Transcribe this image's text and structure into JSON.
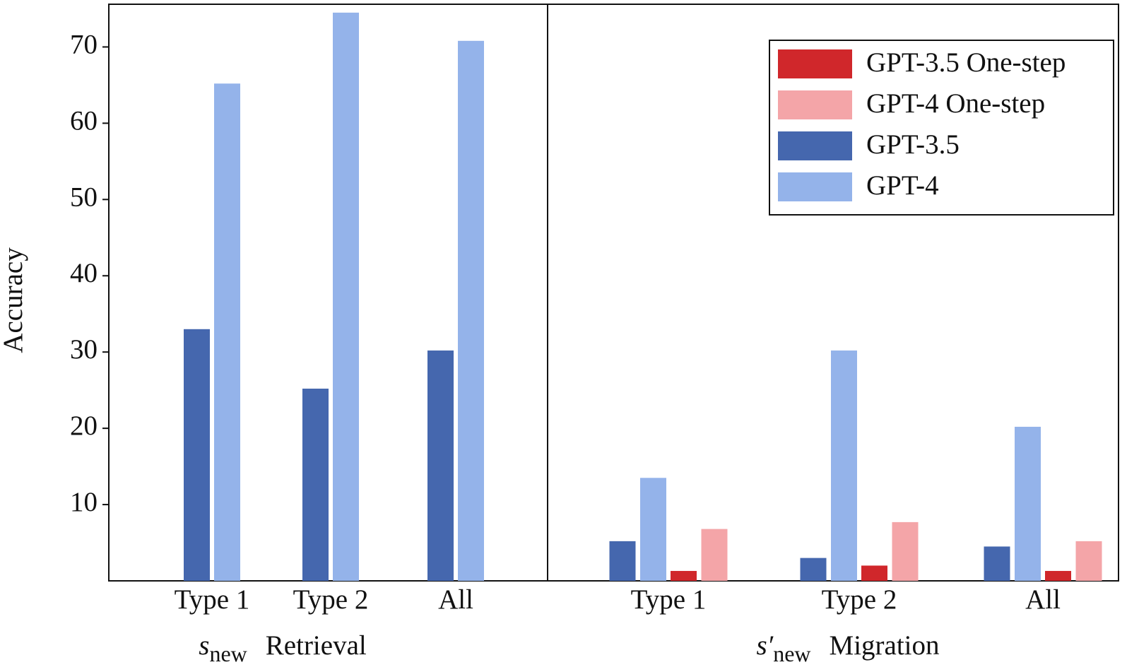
{
  "chart_data": [
    {
      "type": "bar",
      "ylabel": "Accuracy",
      "xlabel_symbol": "s",
      "xlabel_subscript": "new",
      "xlabel": "Retrieval",
      "categories": [
        "Type 1",
        "Type 2",
        "All"
      ],
      "ylim": [
        0,
        75.6
      ],
      "yticks": [
        10,
        20,
        30,
        40,
        50,
        60,
        70
      ],
      "series": [
        {
          "name": "GPT-3.5",
          "color": "#4567ae",
          "values": [
            33,
            25.2,
            30.2
          ]
        },
        {
          "name": "GPT-4",
          "color": "#94b3ea",
          "values": [
            65.2,
            74.5,
            70.8
          ]
        }
      ]
    },
    {
      "type": "bar",
      "xlabel_symbol": "s′",
      "xlabel_subscript": "new",
      "xlabel": "Migration",
      "categories": [
        "Type 1",
        "Type 2",
        "All"
      ],
      "ylim": [
        0,
        75.6
      ],
      "legend": "upper right",
      "series": [
        {
          "name": "GPT-3.5",
          "color": "#4567ae",
          "values": [
            5.2,
            3,
            4.5
          ]
        },
        {
          "name": "GPT-4",
          "color": "#94b3ea",
          "values": [
            13.5,
            30.2,
            20.2
          ]
        },
        {
          "name": "GPT-3.5 One-step",
          "color": "#d0272b",
          "values": [
            1.3,
            2,
            1.3
          ]
        },
        {
          "name": "GPT-4 One-step",
          "color": "#f4a5a8",
          "values": [
            6.8,
            7.7,
            5.2
          ]
        }
      ]
    }
  ]
}
